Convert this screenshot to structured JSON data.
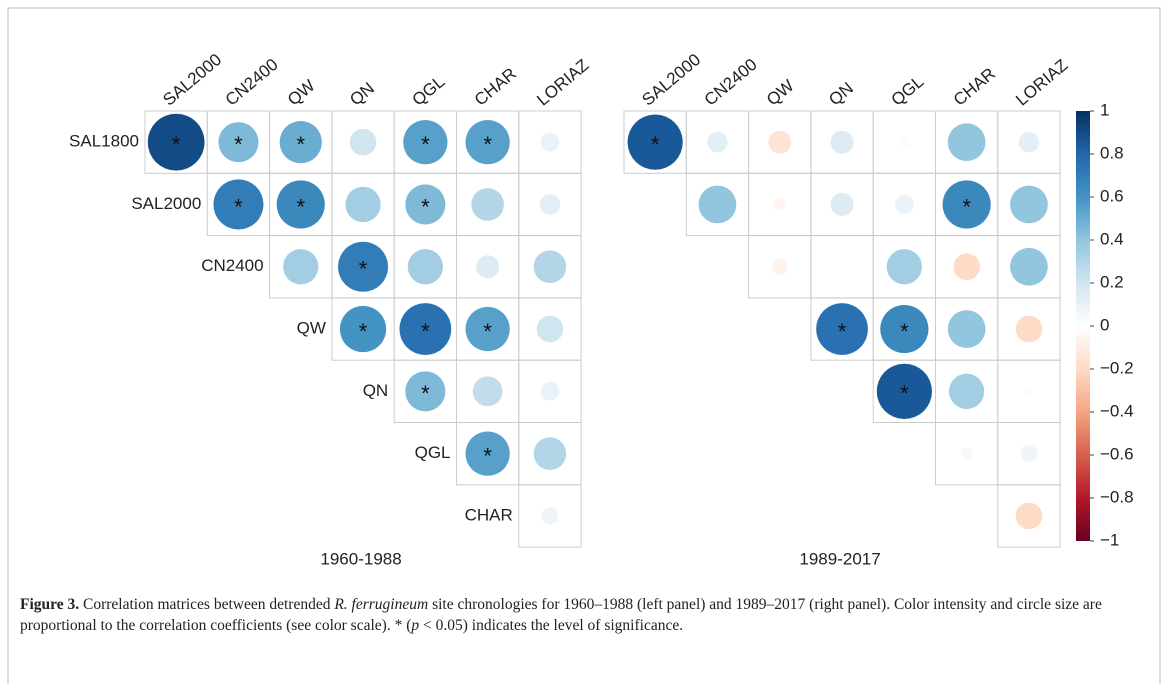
{
  "chart_data": [
    {
      "type": "corrplot",
      "title": "1960-1988",
      "rows": [
        "SAL1800",
        "SAL2000",
        "CN2400",
        "QW",
        "QN",
        "QGL",
        "CHAR"
      ],
      "columns": [
        "SAL2000",
        "CN2400",
        "QW",
        "QN",
        "QGL",
        "CHAR",
        "LORIAZ"
      ],
      "values": [
        [
          0.9,
          0.45,
          0.5,
          0.2,
          0.55,
          0.55,
          0.1
        ],
        [
          null,
          0.7,
          0.65,
          0.35,
          0.45,
          0.3,
          0.12
        ],
        [
          null,
          null,
          0.35,
          0.7,
          0.35,
          0.15,
          0.3
        ],
        [
          null,
          null,
          null,
          0.6,
          0.75,
          0.55,
          0.2
        ],
        [
          null,
          null,
          null,
          null,
          0.45,
          0.25,
          0.1
        ],
        [
          null,
          null,
          null,
          null,
          null,
          0.55,
          0.3
        ],
        [
          null,
          null,
          null,
          null,
          null,
          null,
          0.08
        ]
      ],
      "significant": [
        [
          true,
          true,
          true,
          false,
          true,
          true,
          false
        ],
        [
          null,
          true,
          true,
          false,
          true,
          false,
          false
        ],
        [
          null,
          null,
          false,
          true,
          false,
          false,
          false
        ],
        [
          null,
          null,
          null,
          true,
          true,
          true,
          false
        ],
        [
          null,
          null,
          null,
          null,
          true,
          false,
          false
        ],
        [
          null,
          null,
          null,
          null,
          null,
          true,
          false
        ],
        [
          null,
          null,
          null,
          null,
          null,
          null,
          false
        ]
      ],
      "sig_label": "*",
      "row_labels": true
    },
    {
      "type": "corrplot",
      "title": "1989-2017",
      "columns": [
        "SAL2000",
        "CN2400",
        "QW",
        "QN",
        "QGL",
        "CHAR",
        "LORIAZ"
      ],
      "values": [
        [
          0.85,
          0.12,
          -0.15,
          0.15,
          -0.03,
          0.4,
          0.12
        ],
        [
          null,
          0.4,
          -0.05,
          0.15,
          0.1,
          0.65,
          0.4
        ],
        [
          null,
          null,
          -0.07,
          0,
          0.35,
          -0.2,
          0.4
        ],
        [
          null,
          null,
          null,
          0.75,
          0.65,
          0.4,
          -0.2
        ],
        [
          null,
          null,
          null,
          null,
          0.85,
          0.35,
          -0.02
        ],
        [
          null,
          null,
          null,
          null,
          null,
          0.04,
          0.08
        ],
        [
          null,
          null,
          null,
          null,
          null,
          null,
          -0.2
        ]
      ],
      "significant": [
        [
          true,
          false,
          false,
          false,
          false,
          false,
          false
        ],
        [
          null,
          false,
          false,
          false,
          false,
          true,
          false
        ],
        [
          null,
          null,
          false,
          false,
          false,
          false,
          false
        ],
        [
          null,
          null,
          null,
          true,
          true,
          false,
          false
        ],
        [
          null,
          null,
          null,
          null,
          true,
          false,
          false
        ],
        [
          null,
          null,
          null,
          null,
          null,
          false,
          false
        ],
        [
          null,
          null,
          null,
          null,
          null,
          null,
          false
        ]
      ],
      "sig_label": "*",
      "row_labels": false,
      "clim": [
        -1,
        1
      ],
      "cticks": [
        1,
        0.8,
        0.6,
        0.4,
        0.2,
        0,
        {
          "value": -0.2,
          "label": "−0.2"
        },
        {
          "value": -0.4,
          "label": "−0.4"
        },
        {
          "value": -0.6,
          "label": "−0.6"
        },
        {
          "value": -0.8,
          "label": "−0.8"
        },
        {
          "value": -1,
          "label": "−1"
        }
      ],
      "palette": [
        "#67001F",
        "#B2182B",
        "#D6604D",
        "#F4A582",
        "#FDDBC7",
        "#FFFFFF",
        "#D1E5F0",
        "#92C5DE",
        "#4393C3",
        "#2166AC",
        "#053061"
      ]
    }
  ],
  "caption": {
    "label": "Figure 3.",
    "parts": [
      {
        "text": " Correlation matrices between detrended ",
        "italic": false
      },
      {
        "text": "R. ferrugineum",
        "italic": true
      },
      {
        "text": " site chronologies for 1960–1988 (left panel) and 1989–2017 (right panel). Color intensity and circle size are proportional to the correlation coefficients (see color scale). * (",
        "italic": false
      },
      {
        "text": "p",
        "italic": true
      },
      {
        "text": " < 0.05) indicates the level of significance.",
        "italic": false
      }
    ]
  }
}
